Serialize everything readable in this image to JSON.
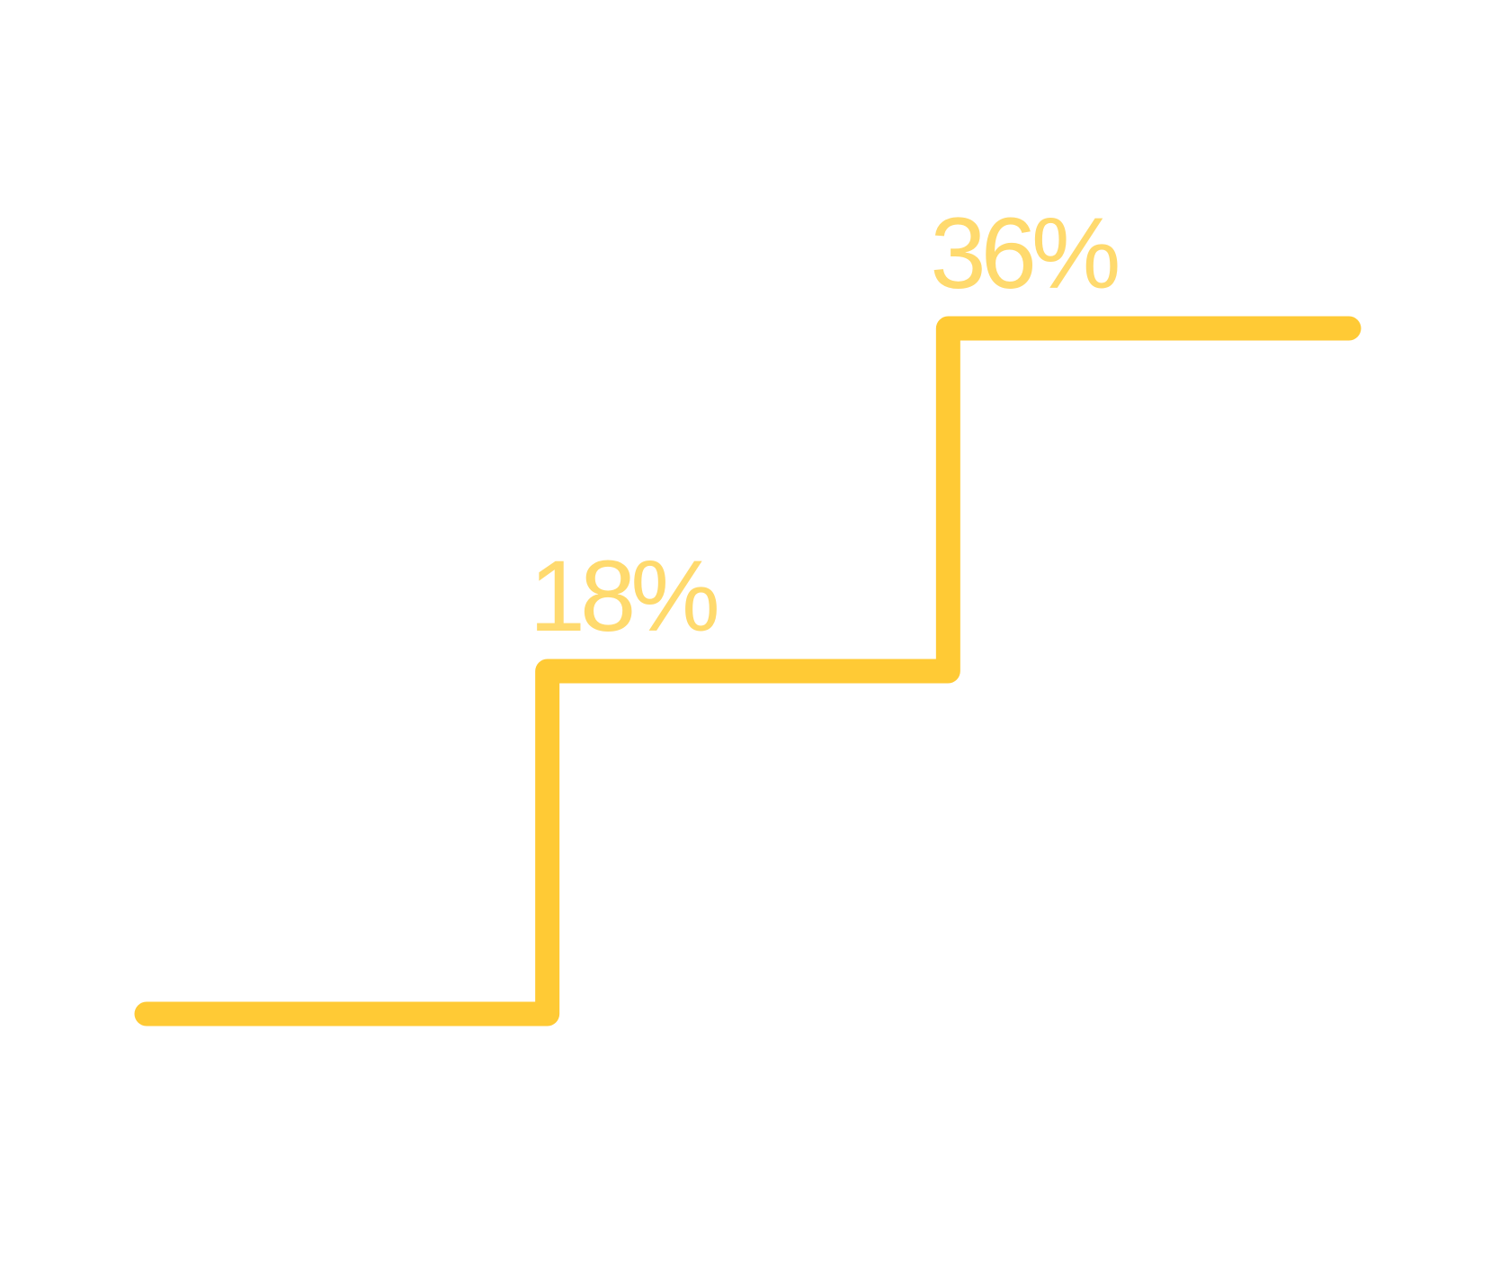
{
  "colors": {
    "background": "#ffffff",
    "line": "#FFCA35",
    "label": "#FFDA6E"
  },
  "chart_data": {
    "type": "line",
    "step": true,
    "title": "",
    "xlabel": "",
    "ylabel": "",
    "grid": false,
    "legend": "none",
    "series": [
      {
        "values": [
          0,
          18,
          36
        ],
        "labels": [
          "",
          "18%",
          "36%"
        ]
      }
    ],
    "ylim": [
      0,
      36
    ]
  }
}
